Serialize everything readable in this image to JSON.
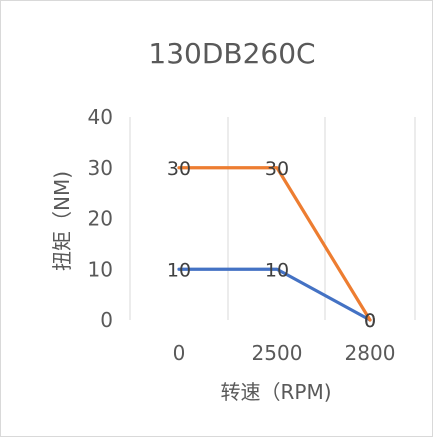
{
  "chart_data": {
    "type": "line",
    "title": "130DB260C",
    "xlabel": "转速（RPM)",
    "ylabel": "扭矩（NM)",
    "categories": [
      "0",
      "2500",
      "2800"
    ],
    "y_ticks": [
      "0",
      "10",
      "20",
      "30",
      "40"
    ],
    "ylim": [
      0,
      40
    ],
    "grid": true,
    "series": [
      {
        "values": [
          10,
          10,
          0
        ],
        "color": "#4472C4"
      },
      {
        "values": [
          30,
          30,
          0
        ],
        "color": "#ED7D31"
      }
    ]
  }
}
